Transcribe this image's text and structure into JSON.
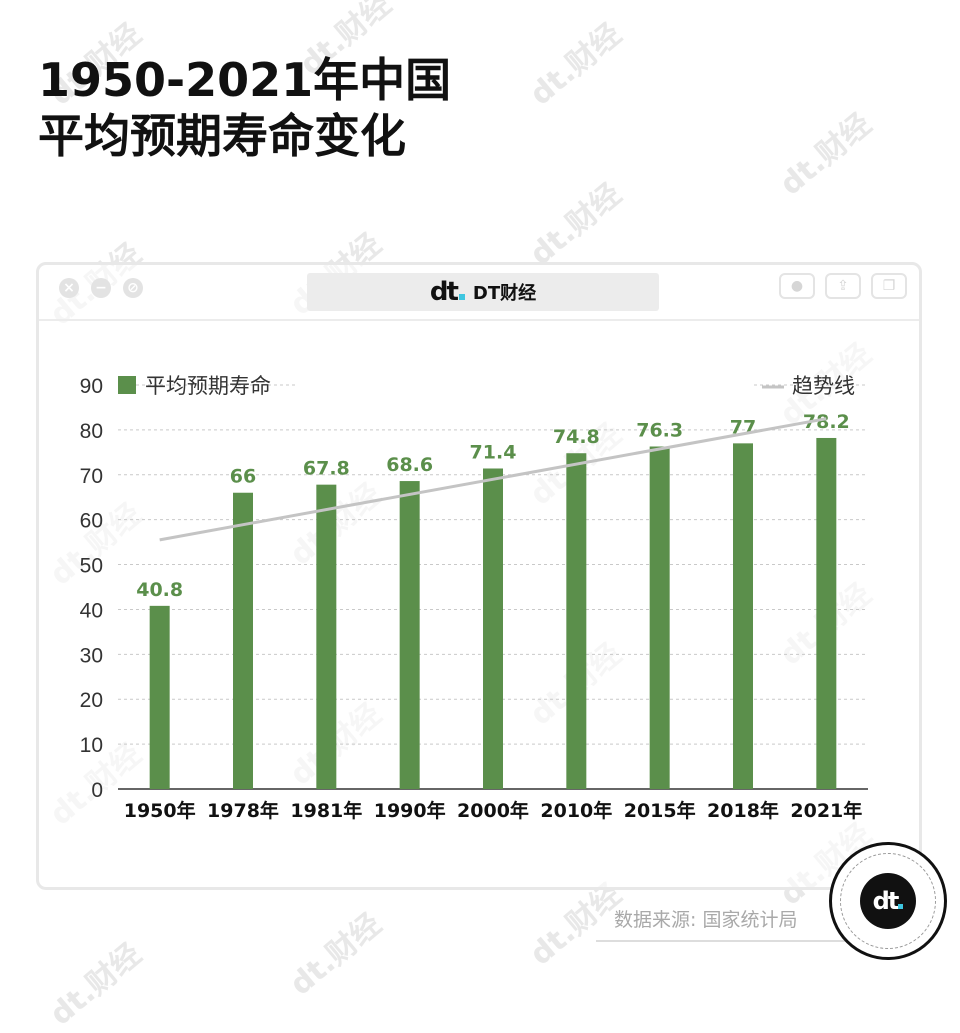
{
  "header": {
    "title_line1": "1950-2021年中国",
    "title_line2": "平均预期寿命变化"
  },
  "window": {
    "tab_logo": "dt",
    "tab_name": "DT财经",
    "logo_dot_color": "#3ec6e0"
  },
  "watermark_text": "dt.财经",
  "source": "数据来源: 国家统计局",
  "badge_logo": "dt",
  "chart_data": {
    "type": "bar",
    "categories": [
      "1950年",
      "1978年",
      "1981年",
      "1990年",
      "2000年",
      "2010年",
      "2015年",
      "2018年",
      "2021年"
    ],
    "series": [
      {
        "name": "平均预期寿命",
        "values": [
          40.8,
          66,
          67.8,
          68.6,
          71.4,
          74.8,
          76.3,
          77,
          78.2
        ],
        "color": "#5b8f4b"
      }
    ],
    "data_labels": [
      "40.8",
      "66",
      "67.8",
      "68.6",
      "71.4",
      "74.8",
      "76.3",
      "77",
      "78.2"
    ],
    "trendline": {
      "name": "趋势线",
      "start": 55.5,
      "end": 82.5,
      "color": "#c4c4c4"
    },
    "ylim": [
      0,
      90
    ],
    "yticks": [
      0,
      10,
      20,
      30,
      40,
      50,
      60,
      70,
      80,
      90
    ],
    "grid": true,
    "legend": "top",
    "title": "",
    "xlabel": "",
    "ylabel": ""
  }
}
